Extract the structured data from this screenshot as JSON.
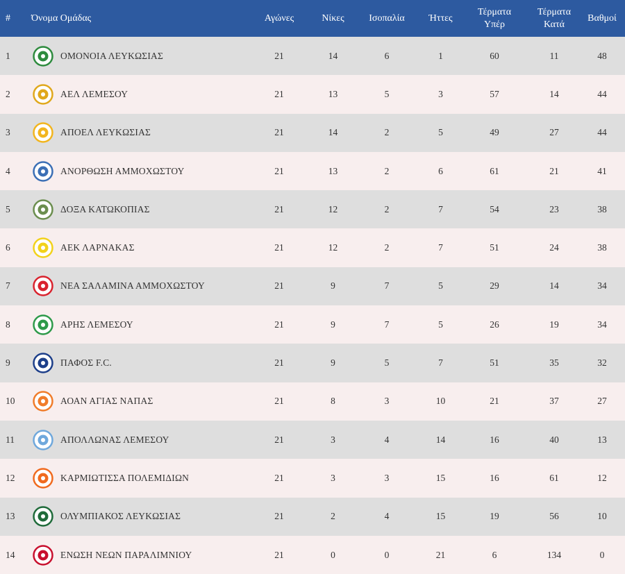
{
  "headers": {
    "rank": "#",
    "team": "Όνομα Ομάδας",
    "played": "Αγώνες",
    "wins": "Νίκες",
    "draws": "Ισοπαλία",
    "losses": "Ήττες",
    "goals_for_1": "Τέρματα",
    "goals_for_2": "Υπέρ",
    "goals_against_1": "Τέρματα",
    "goals_against_2": "Κατά",
    "points": "Βαθμοί"
  },
  "colors": {
    "header_bg": "#2d5aa0",
    "row_odd": "#dedede",
    "row_even": "#f8eeee"
  },
  "rows": [
    {
      "rank": "1",
      "team": "ΟΜΟΝΟΙΑ ΛΕΥΚΩΣΙΑΣ",
      "played": "21",
      "wins": "14",
      "draws": "6",
      "losses": "1",
      "gf": "60",
      "ga": "11",
      "pts": "48",
      "logo": "omonoia-logo",
      "logo_color": "#2e8b3e"
    },
    {
      "rank": "2",
      "team": "ΑΕΛ ΛΕΜΕΣΟΥ",
      "played": "21",
      "wins": "13",
      "draws": "5",
      "losses": "3",
      "gf": "57",
      "ga": "14",
      "pts": "44",
      "logo": "ael-logo",
      "logo_color": "#e0a81c"
    },
    {
      "rank": "3",
      "team": "ΑΠΟΕΛ ΛΕΥΚΩΣΙΑΣ",
      "played": "21",
      "wins": "14",
      "draws": "2",
      "losses": "5",
      "gf": "49",
      "ga": "27",
      "pts": "44",
      "logo": "apoel-logo",
      "logo_color": "#f2b51e"
    },
    {
      "rank": "4",
      "team": "ΑΝΟΡΘΩΣΗ ΑΜΜΟΧΩΣΤΟΥ",
      "played": "21",
      "wins": "13",
      "draws": "2",
      "losses": "6",
      "gf": "61",
      "ga": "21",
      "pts": "41",
      "logo": "anorthosis-logo",
      "logo_color": "#3b6fb5"
    },
    {
      "rank": "5",
      "team": "ΔΟΞΑ ΚΑΤΩΚΟΠΙΑΣ",
      "played": "21",
      "wins": "12",
      "draws": "2",
      "losses": "7",
      "gf": "54",
      "ga": "23",
      "pts": "38",
      "logo": "doxa-logo",
      "logo_color": "#6b8e4e"
    },
    {
      "rank": "6",
      "team": "ΑΕΚ ΛΑΡΝΑΚΑΣ",
      "played": "21",
      "wins": "12",
      "draws": "2",
      "losses": "7",
      "gf": "51",
      "ga": "24",
      "pts": "38",
      "logo": "aek-logo",
      "logo_color": "#f2d21b"
    },
    {
      "rank": "7",
      "team": "ΝΕΑ ΣΑΛΑΜΙΝΑ ΑΜΜΟΧΩΣΤΟΥ",
      "played": "21",
      "wins": "9",
      "draws": "7",
      "losses": "5",
      "gf": "29",
      "ga": "14",
      "pts": "34",
      "logo": "nea-salamina-logo",
      "logo_color": "#d9232e"
    },
    {
      "rank": "8",
      "team": "ΑΡΗΣ ΛΕΜΕΣΟΥ",
      "played": "21",
      "wins": "9",
      "draws": "7",
      "losses": "5",
      "gf": "26",
      "ga": "19",
      "pts": "34",
      "logo": "aris-logo",
      "logo_color": "#2e9a4a"
    },
    {
      "rank": "9",
      "team": "ΠΑΦΟΣ F.C.",
      "played": "21",
      "wins": "9",
      "draws": "5",
      "losses": "7",
      "gf": "51",
      "ga": "35",
      "pts": "32",
      "logo": "pafos-logo",
      "logo_color": "#1d3f8a"
    },
    {
      "rank": "10",
      "team": "ΑΟΑΝ ΑΓΙΑΣ ΝΑΠΑΣ",
      "played": "21",
      "wins": "8",
      "draws": "3",
      "losses": "10",
      "gf": "21",
      "ga": "37",
      "pts": "27",
      "logo": "aoan-logo",
      "logo_color": "#f07c2a"
    },
    {
      "rank": "11",
      "team": "ΑΠΟΛΛΩΝΑΣ ΛΕΜΕΣΟΥ",
      "played": "21",
      "wins": "3",
      "draws": "4",
      "losses": "14",
      "gf": "16",
      "ga": "40",
      "pts": "13",
      "logo": "apollon-logo",
      "logo_color": "#6fa8dc"
    },
    {
      "rank": "12",
      "team": "ΚΑΡΜΙΩΤΙΣΣΑ ΠΟΛΕΜΙΔΙΩΝ",
      "played": "21",
      "wins": "3",
      "draws": "3",
      "losses": "15",
      "gf": "16",
      "ga": "61",
      "pts": "12",
      "logo": "karmiotissa-logo",
      "logo_color": "#f06a1e"
    },
    {
      "rank": "13",
      "team": "ΟΛΥΜΠΙΑΚΟΣ ΛΕΥΚΩΣΙΑΣ",
      "played": "21",
      "wins": "2",
      "draws": "4",
      "losses": "15",
      "gf": "19",
      "ga": "56",
      "pts": "10",
      "logo": "olympiakos-logo",
      "logo_color": "#1f6b3a"
    },
    {
      "rank": "14",
      "team": "ΕΝΩΣΗ ΝΕΩΝ ΠΑΡΑΛΙΜΝΙΟΥ",
      "played": "21",
      "wins": "0",
      "draws": "0",
      "losses": "21",
      "gf": "6",
      "ga": "134",
      "pts": "0",
      "logo": "enp-logo",
      "logo_color": "#c8102e"
    }
  ]
}
